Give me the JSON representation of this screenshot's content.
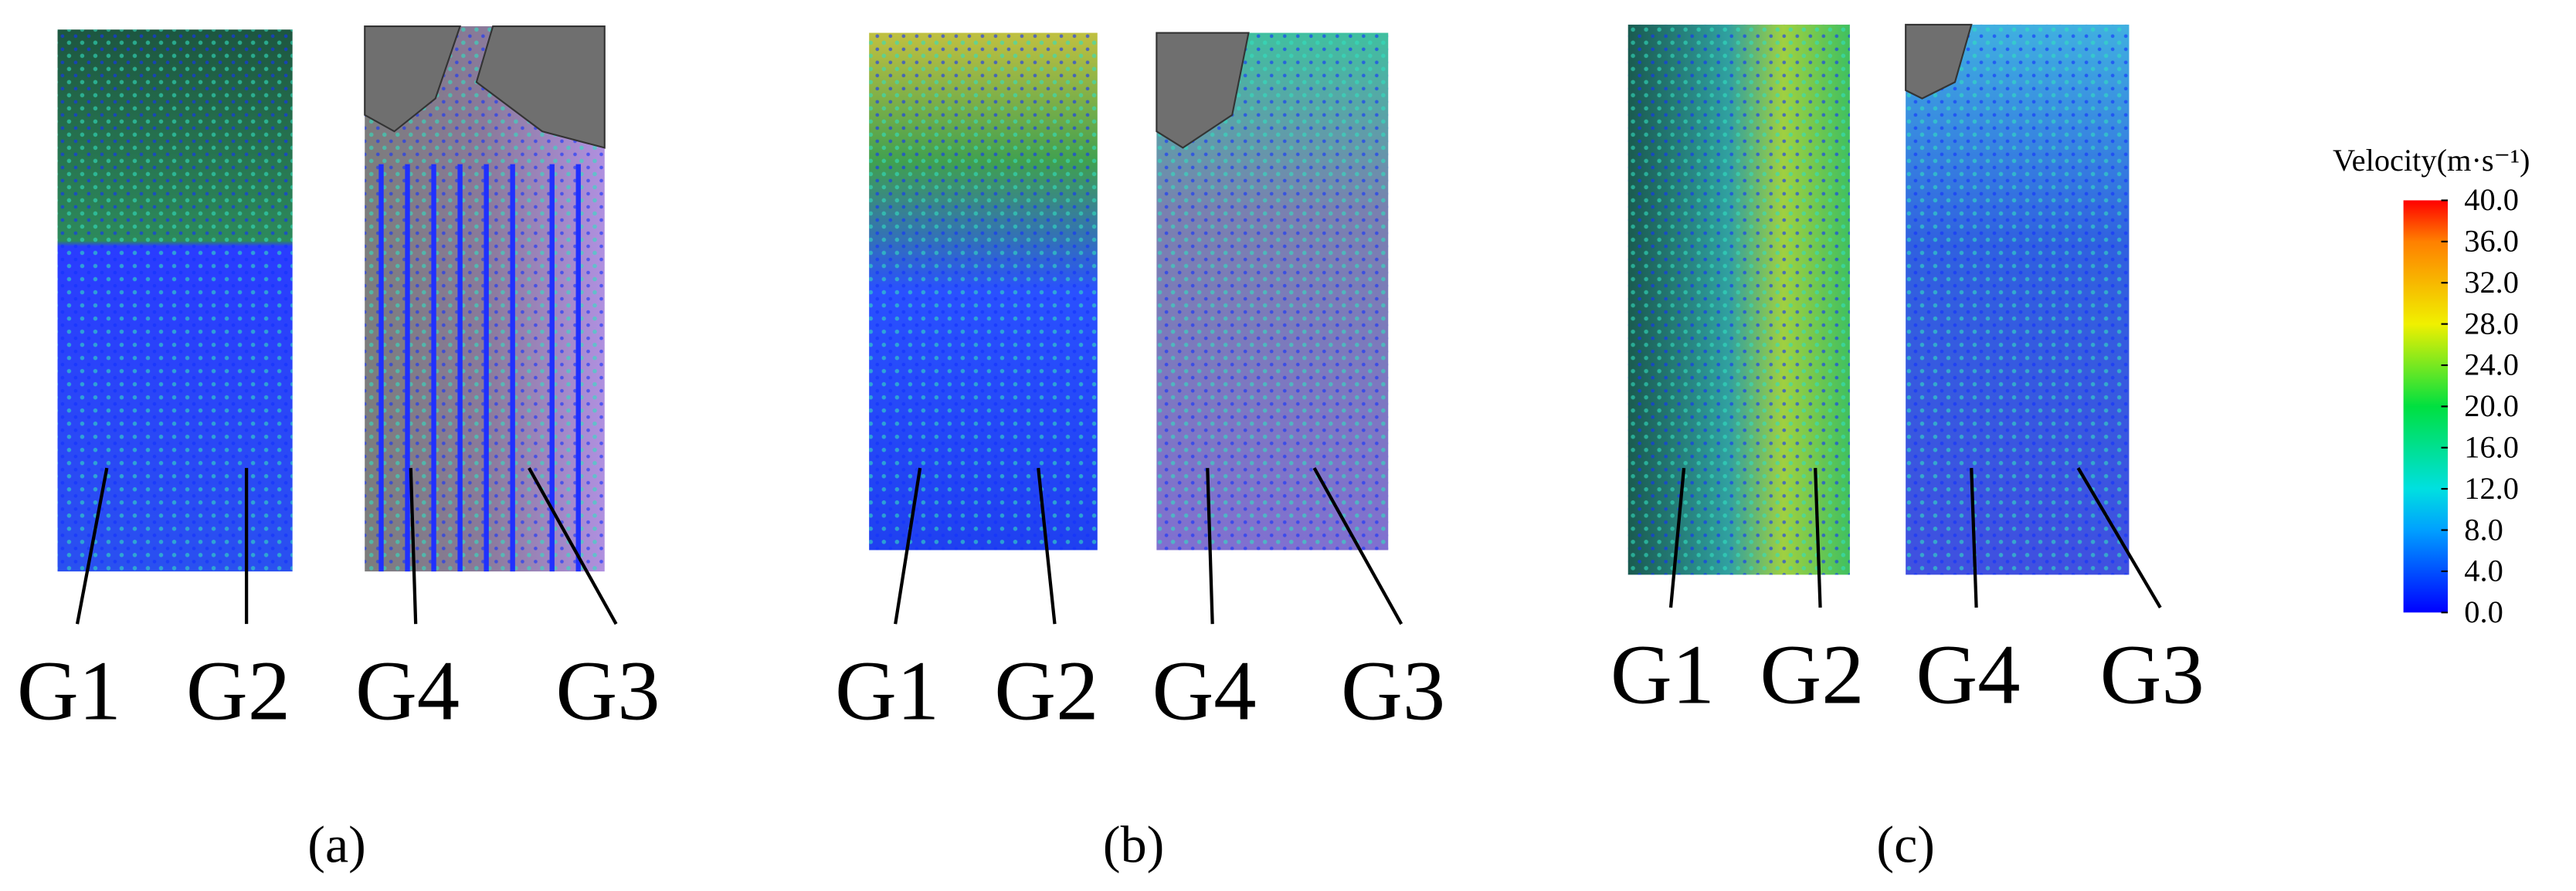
{
  "panels": [
    {
      "caption": "(a)",
      "gears": [
        "G1",
        "G2",
        "G4",
        "G3"
      ]
    },
    {
      "caption": "(b)",
      "gears": [
        "G1",
        "G2",
        "G4",
        "G3"
      ]
    },
    {
      "caption": "(c)",
      "gears": [
        "G1",
        "G2",
        "G4",
        "G3"
      ]
    }
  ],
  "colorbar": {
    "title": "Velocity(m·s⁻¹)",
    "lim": [
      0,
      40
    ],
    "ticks": [
      {
        "value": 40,
        "label": "40.0"
      },
      {
        "value": 36,
        "label": "36.0"
      },
      {
        "value": 32,
        "label": "32.0"
      },
      {
        "value": 28,
        "label": "28.0"
      },
      {
        "value": 24,
        "label": "24.0"
      },
      {
        "value": 20,
        "label": "20.0"
      },
      {
        "value": 16,
        "label": "16.0"
      },
      {
        "value": 12,
        "label": "12.0"
      },
      {
        "value": 8,
        "label": "8.0"
      },
      {
        "value": 4,
        "label": "4.0"
      },
      {
        "value": 0,
        "label": "0.0"
      }
    ]
  }
}
